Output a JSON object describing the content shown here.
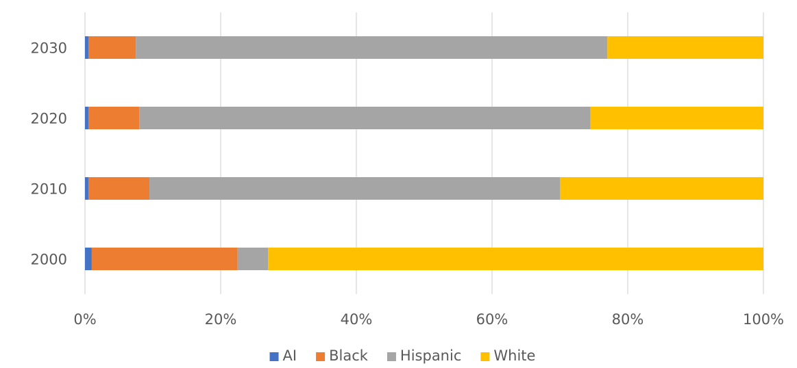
{
  "chart_data": {
    "type": "bar",
    "orientation": "horizontal",
    "stacked": "percent",
    "title": "",
    "xlabel": "",
    "ylabel": "",
    "categories": [
      "2000",
      "2010",
      "2020",
      "2030"
    ],
    "xlim": [
      0,
      100
    ],
    "x_ticks": [
      {
        "value": 0,
        "label": "0%"
      },
      {
        "value": 20,
        "label": "20%"
      },
      {
        "value": 40,
        "label": "40%"
      },
      {
        "value": 60,
        "label": "60%"
      },
      {
        "value": 80,
        "label": "80%"
      },
      {
        "value": 100,
        "label": "100%"
      }
    ],
    "grid": "vertical",
    "legend_position": "bottom",
    "series": [
      {
        "name": "AI",
        "color": "#4472C4",
        "values": [
          1.0,
          0.5,
          0.5,
          0.5
        ]
      },
      {
        "name": "Black",
        "color": "#ED7D31",
        "values": [
          21.5,
          9.0,
          7.5,
          7.0
        ]
      },
      {
        "name": "Hispanic",
        "color": "#A5A5A5",
        "values": [
          4.5,
          60.5,
          66.5,
          69.5
        ]
      },
      {
        "name": "White",
        "color": "#FFC000",
        "values": [
          73.0,
          30.0,
          25.5,
          23.0
        ]
      }
    ]
  }
}
